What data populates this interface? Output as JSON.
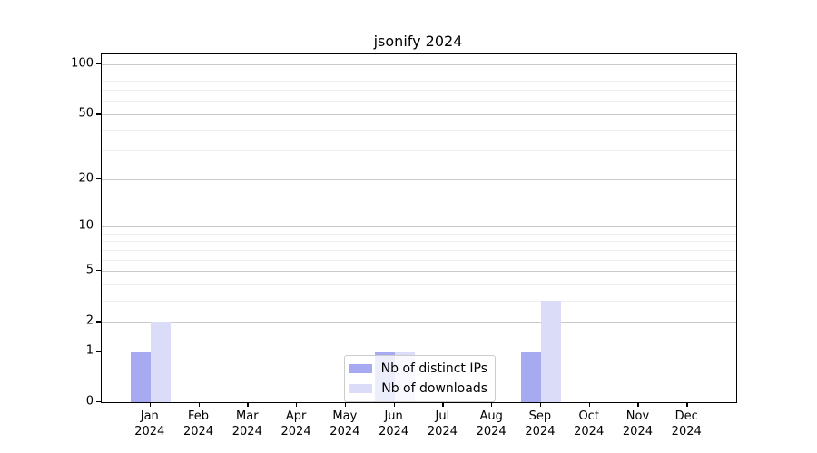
{
  "title": "jsonify 2024",
  "colors": {
    "distinct_ips": "#a7aaf0",
    "downloads": "#dbdcf8",
    "grid_major": "#c9c9c9",
    "grid_minor": "#efefef",
    "axis": "#000000",
    "legend_border": "#cccccc"
  },
  "chart_data": {
    "type": "bar",
    "title": "jsonify 2024",
    "scale": "log1p",
    "categories": [
      "Jan 2024",
      "Feb 2024",
      "Mar 2024",
      "Apr 2024",
      "May 2024",
      "Jun 2024",
      "Jul 2024",
      "Aug 2024",
      "Sep 2024",
      "Oct 2024",
      "Nov 2024",
      "Dec 2024"
    ],
    "x_months": [
      "Jan",
      "Feb",
      "Mar",
      "Apr",
      "May",
      "Jun",
      "Jul",
      "Aug",
      "Sep",
      "Oct",
      "Nov",
      "Dec"
    ],
    "x_year": "2024",
    "series": [
      {
        "name": "Nb of distinct IPs",
        "color": "#a7aaf0",
        "values": [
          1,
          0,
          0,
          0,
          0,
          1,
          0,
          0,
          1,
          0,
          0,
          0
        ]
      },
      {
        "name": "Nb of downloads",
        "color": "#dbdcf8",
        "values": [
          2,
          0,
          0,
          0,
          0,
          1,
          0,
          0,
          3,
          0,
          0,
          0
        ]
      }
    ],
    "y_ticks": [
      0,
      1,
      2,
      5,
      10,
      20,
      50,
      100
    ],
    "y_minor_ticks": [
      3,
      4,
      6,
      7,
      8,
      9,
      30,
      40,
      60,
      70,
      80,
      90
    ],
    "ylim": [
      0,
      115
    ],
    "xlabel": "",
    "ylabel": "",
    "grid": true,
    "legend_position": "lower-center-inside"
  }
}
